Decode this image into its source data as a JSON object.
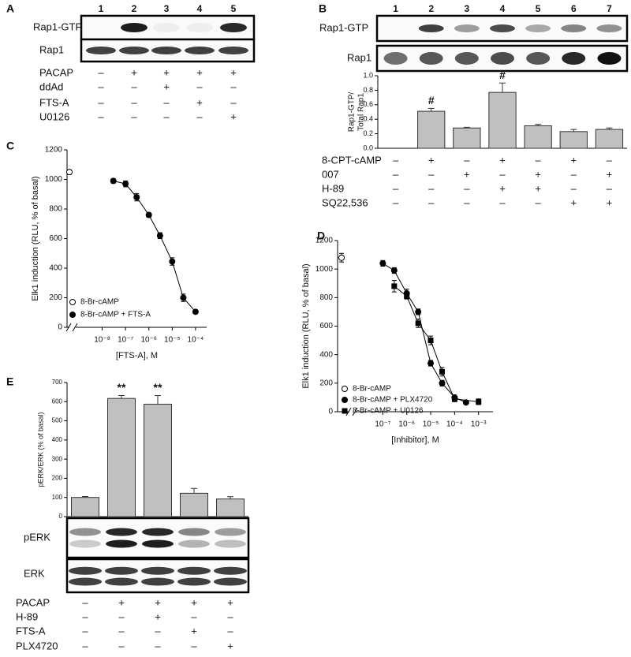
{
  "panels": {
    "A": {
      "label": "A",
      "lanes": [
        "1",
        "2",
        "3",
        "4",
        "5"
      ],
      "blots": [
        "Rap1-GTP",
        "Rap1"
      ],
      "treatments": [
        {
          "name": "PACAP",
          "signs": [
            "–",
            "+",
            "+",
            "+",
            "+"
          ]
        },
        {
          "name": "ddAd",
          "signs": [
            "–",
            "–",
            "+",
            "–",
            "–"
          ]
        },
        {
          "name": "FTS-A",
          "signs": [
            "–",
            "–",
            "–",
            "+",
            "–"
          ]
        },
        {
          "name": "U0126",
          "signs": [
            "–",
            "–",
            "–",
            "–",
            "+"
          ]
        }
      ]
    },
    "B": {
      "label": "B",
      "blots": [
        "Rap1-GTP",
        "Rap1"
      ],
      "treatments": [
        {
          "name": "8-CPT-cAMP",
          "signs": [
            "–",
            "+",
            "–",
            "+",
            "–",
            "+",
            "–"
          ]
        },
        {
          "name": "007",
          "signs": [
            "–",
            "–",
            "+",
            "–",
            "+",
            "–",
            "+"
          ]
        },
        {
          "name": "H-89",
          "signs": [
            "–",
            "–",
            "–",
            "+",
            "+",
            "–",
            "–"
          ]
        },
        {
          "name": "SQ22,536",
          "signs": [
            "–",
            "–",
            "–",
            "–",
            "–",
            "+",
            "+"
          ]
        }
      ]
    },
    "C": {
      "label": "C"
    },
    "D": {
      "label": "D"
    },
    "E": {
      "label": "E",
      "blots": [
        "pERK",
        "ERK"
      ],
      "treatments": [
        {
          "name": "PACAP",
          "signs": [
            "–",
            "+",
            "+",
            "+",
            "+"
          ]
        },
        {
          "name": "H-89",
          "signs": [
            "–",
            "–",
            "+",
            "–",
            "–"
          ]
        },
        {
          "name": "FTS-A",
          "signs": [
            "–",
            "–",
            "–",
            "+",
            "–"
          ]
        },
        {
          "name": "PLX4720",
          "signs": [
            "–",
            "–",
            "–",
            "–",
            "+"
          ]
        }
      ]
    }
  },
  "chart_data": [
    {
      "type": "bar",
      "ylabel": [
        "Rap1-GTP/",
        "Total Rap1"
      ],
      "categories": [
        "1",
        "2",
        "3",
        "4",
        "5",
        "6",
        "7"
      ],
      "values": [
        0,
        0.51,
        0.28,
        0.77,
        0.31,
        0.23,
        0.26
      ],
      "errors": [
        null,
        0.04,
        0.01,
        0.13,
        0.02,
        0.03,
        0.02
      ],
      "annotations": [
        null,
        "#",
        null,
        "#",
        null,
        null,
        null
      ],
      "color": "#c0c0c0",
      "ylim": [
        0,
        1
      ],
      "yticks": [
        {
          "value": 0,
          "label": "0.0"
        },
        {
          "value": 0.2,
          "label": "0.2"
        },
        {
          "value": 0.4,
          "label": "0.4"
        },
        {
          "value": 0.6,
          "label": "0.6"
        },
        {
          "value": 0.8,
          "label": "0.8"
        },
        {
          "value": 1,
          "label": "1.0"
        }
      ]
    },
    {
      "type": "line",
      "xlabel": "[FTS-A], M",
      "ylabel": "Elk1 induction (RLU, % of basal)",
      "xscale": "log",
      "xlim": [
        1e-09,
        0.0003
      ],
      "ylim": [
        0,
        1200
      ],
      "xticks": [
        {
          "value": 1e-08,
          "label": "10⁻⁸"
        },
        {
          "value": 1e-07,
          "label": "10⁻⁷"
        },
        {
          "value": 1e-06,
          "label": "10⁻⁶"
        },
        {
          "value": 1e-05,
          "label": "10⁻⁵"
        },
        {
          "value": 0.0001,
          "label": "10⁻⁴"
        }
      ],
      "yticks": [
        0,
        200,
        400,
        600,
        800,
        1000,
        1200
      ],
      "legend": "lower left",
      "series": [
        {
          "name": "8-Br-cAMP",
          "marker": "open-circle",
          "color": "#000000",
          "values": [
            1050
          ],
          "errors": [
            15
          ]
        },
        {
          "name": "8-Br-cAMP + FTS-A",
          "marker": "circle",
          "color": "#000000",
          "x": [
            3e-08,
            1e-07,
            3e-07,
            1e-06,
            3e-06,
            1e-05,
            3e-05,
            0.0001
          ],
          "values": [
            990,
            970,
            880,
            760,
            620,
            445,
            200,
            105
          ],
          "errors": [
            15,
            20,
            25,
            15,
            20,
            25,
            25,
            5
          ]
        }
      ]
    },
    {
      "type": "line",
      "xlabel": "[Inhibitor], M",
      "ylabel": "Elk1 induction (RLU, % of basal)",
      "xscale": "log",
      "xlim": [
        1e-08,
        0.004
      ],
      "ylim": [
        0,
        1200
      ],
      "xticks": [
        {
          "value": 1e-07,
          "label": "10⁻⁷"
        },
        {
          "value": 1e-06,
          "label": "10⁻⁶"
        },
        {
          "value": 1e-05,
          "label": "10⁻⁵"
        },
        {
          "value": 0.0001,
          "label": "10⁻⁴"
        },
        {
          "value": 0.001,
          "label": "10⁻³"
        }
      ],
      "yticks": [
        0,
        200,
        400,
        600,
        800,
        1000,
        1200
      ],
      "legend": "lower left",
      "series": [
        {
          "name": "8-Br-cAMP",
          "marker": "open-circle",
          "color": "#000000",
          "values": [
            1080
          ],
          "errors": [
            30
          ]
        },
        {
          "name": "8-Br-cAMP + PLX4720",
          "marker": "circle",
          "color": "#000000",
          "x": [
            1e-07,
            3e-07,
            1e-06,
            3e-06,
            1e-05,
            3e-05,
            0.0001,
            0.0003
          ],
          "values": [
            1040,
            990,
            830,
            700,
            340,
            200,
            100,
            65
          ],
          "errors": [
            20,
            20,
            30,
            20,
            20,
            20,
            10,
            10
          ]
        },
        {
          "name": "8-Br-cAMP + U0126",
          "marker": "square",
          "color": "#000000",
          "x": [
            3e-07,
            1e-06,
            3e-06,
            1e-05,
            3e-05,
            0.0001,
            0.001
          ],
          "values": [
            880,
            810,
            620,
            500,
            280,
            90,
            70
          ],
          "errors": [
            40,
            20,
            30,
            30,
            30,
            20,
            20
          ]
        }
      ]
    },
    {
      "type": "bar",
      "ylabel": "pERK/ERK (% of basal)",
      "values": [
        100,
        617,
        587,
        122,
        92
      ],
      "errors": [
        5,
        15,
        45,
        25,
        12
      ],
      "annotations": [
        null,
        "**",
        "**",
        null,
        null
      ],
      "color": "#c0c0c0",
      "ylim": [
        0,
        700
      ],
      "yticks": [
        0,
        100,
        200,
        300,
        400,
        500,
        600,
        700
      ]
    }
  ]
}
